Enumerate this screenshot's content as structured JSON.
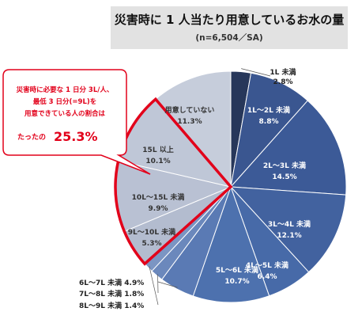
{
  "header": {
    "title": "災害時に 1 人当たり用意しているお水の量",
    "subtitle": "(n=6,504／SA)"
  },
  "callout": {
    "line1": "災害時に必要な 1 日分 3L/人、",
    "line2": "最低 3 日分(=9L)を",
    "line3": "用意できている人の割合は",
    "prefix": "たったの",
    "value": "25.3%"
  },
  "colors": {
    "dark_navy": "#2c3a5a",
    "blue": "#4a6aa5",
    "light": "#c3cad9",
    "highlight": "#e2001a"
  },
  "chart_data": {
    "type": "pie",
    "title": "災害時に 1 人当たり用意しているお水の量",
    "subtitle": "(n=6,504／SA)",
    "unit": "%",
    "slices": [
      {
        "label": "1L 未満",
        "value": 2.8,
        "display": "2.8%"
      },
      {
        "label": "1L～2L 未満",
        "value": 8.8,
        "display": "8.8%"
      },
      {
        "label": "2L～3L 未満",
        "value": 14.5,
        "display": "14.5%"
      },
      {
        "label": "3L～4L 未満",
        "value": 12.1,
        "display": "12.1%"
      },
      {
        "label": "4L～5L 未満",
        "value": 6.4,
        "display": "6.4%"
      },
      {
        "label": "5L～6L 未満",
        "value": 10.7,
        "display": "10.7%"
      },
      {
        "label": "6L～7L 未満",
        "value": 4.9,
        "display": "6L～7L 未満 4.9%"
      },
      {
        "label": "7L～8L 未満",
        "value": 1.8,
        "display": "7L～8L 未満 1.8%"
      },
      {
        "label": "8L～9L 未満",
        "value": 1.4,
        "display": "8L～9L 未満 1.4%"
      },
      {
        "label": "9L～10L 未満",
        "value": 5.3,
        "display": "5.3%"
      },
      {
        "label": "10L～15L 未満",
        "value": 9.9,
        "display": "9.9%"
      },
      {
        "label": "15L 以上",
        "value": 10.1,
        "display": "10.1%"
      },
      {
        "label": "用意していない",
        "value": 11.3,
        "display": "11.3%"
      }
    ],
    "highlighted": [
      "9L～10L 未満",
      "10L～15L 未満",
      "15L 以上"
    ]
  }
}
